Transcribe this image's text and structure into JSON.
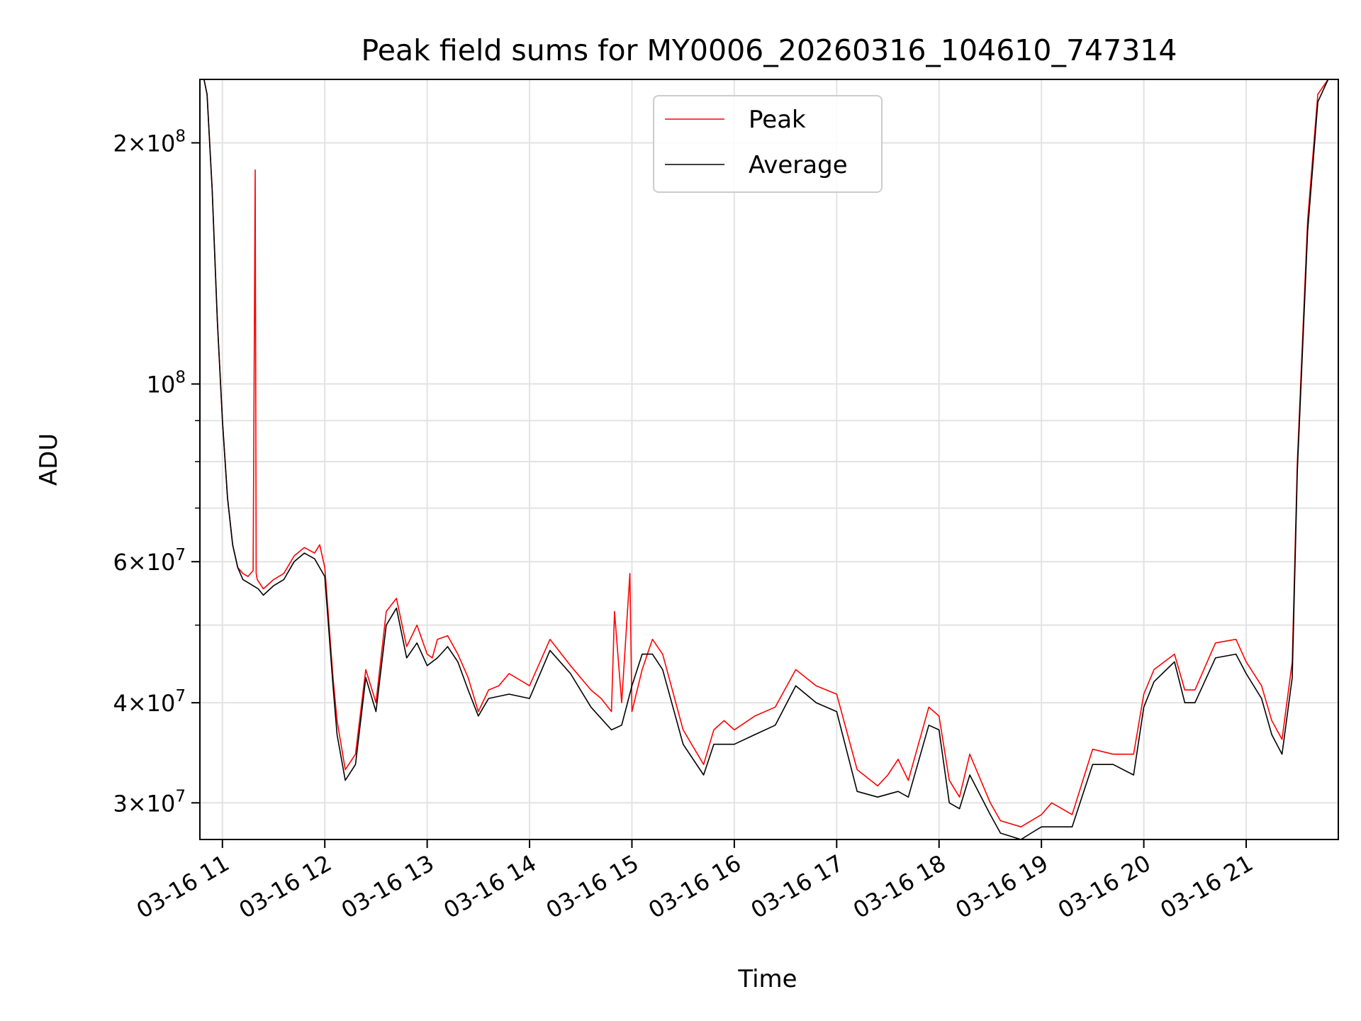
{
  "chart_data": {
    "type": "line",
    "title": "Peak field sums for MY0006_20260316_104610_747314",
    "xlabel": "Time",
    "ylabel": "ADU",
    "yscale": "log",
    "xlim": [
      "2026-03-16 10:46",
      "2026-03-16 21:54"
    ],
    "ylim": [
      27000000,
      240000000
    ],
    "grid": true,
    "legend_position": "top-center",
    "x_ticks": [
      "03-16 11",
      "03-16 12",
      "03-16 13",
      "03-16 14",
      "03-16 15",
      "03-16 16",
      "03-16 17",
      "03-16 18",
      "03-16 19",
      "03-16 20",
      "03-16 21"
    ],
    "y_ticks": [
      {
        "value": 30000000,
        "mantissa": "3",
        "exponent": "7"
      },
      {
        "value": 40000000,
        "mantissa": "4",
        "exponent": "7"
      },
      {
        "value": 60000000,
        "mantissa": "6",
        "exponent": "7"
      },
      {
        "value": 100000000,
        "mantissa": "",
        "exponent": "8"
      },
      {
        "value": 200000000,
        "mantissa": "2",
        "exponent": "8"
      }
    ],
    "tick_base": "10",
    "x_units": "hours since 2026-03-16 00:00",
    "series": [
      {
        "name": "Peak",
        "color": "#ff0000",
        "x": [
          10.82,
          10.85,
          10.9,
          10.95,
          11.0,
          11.05,
          11.1,
          11.15,
          11.2,
          11.25,
          11.3,
          11.32,
          11.33,
          11.34,
          11.4,
          11.5,
          11.6,
          11.7,
          11.8,
          11.9,
          11.95,
          12.0,
          12.08,
          12.12,
          12.2,
          12.3,
          12.4,
          12.5,
          12.6,
          12.7,
          12.8,
          12.9,
          13.0,
          13.05,
          13.1,
          13.2,
          13.3,
          13.4,
          13.5,
          13.6,
          13.7,
          13.8,
          14.0,
          14.2,
          14.4,
          14.6,
          14.7,
          14.8,
          14.83,
          14.9,
          14.98,
          15.0,
          15.1,
          15.2,
          15.3,
          15.5,
          15.7,
          15.8,
          15.9,
          16.0,
          16.2,
          16.4,
          16.6,
          16.8,
          17.0,
          17.2,
          17.4,
          17.5,
          17.6,
          17.7,
          17.9,
          18.0,
          18.1,
          18.2,
          18.3,
          18.5,
          18.6,
          18.8,
          19.0,
          19.1,
          19.2,
          19.3,
          19.5,
          19.7,
          19.9,
          20.0,
          20.1,
          20.3,
          20.4,
          20.5,
          20.7,
          20.9,
          21.0,
          21.15,
          21.25,
          21.35,
          21.45,
          21.5,
          21.6,
          21.7,
          21.8,
          21.85,
          21.9
        ],
        "y": [
          240000000,
          230000000,
          175000000,
          120000000,
          90000000,
          72000000,
          63000000,
          59000000,
          58000000,
          57500000,
          58500000,
          185000000,
          58000000,
          57000000,
          55500000,
          57000000,
          58000000,
          61000000,
          62500000,
          61500000,
          63000000,
          59000000,
          43000000,
          38000000,
          33000000,
          34500000,
          44000000,
          40000000,
          52000000,
          54000000,
          47000000,
          50000000,
          46000000,
          45500000,
          48000000,
          48500000,
          46000000,
          43000000,
          39000000,
          41500000,
          42000000,
          43500000,
          42000000,
          48000000,
          44500000,
          41500000,
          40500000,
          39000000,
          52000000,
          40000000,
          58000000,
          39000000,
          44000000,
          48000000,
          46000000,
          37000000,
          33500000,
          37000000,
          38000000,
          37000000,
          38500000,
          39500000,
          44000000,
          42000000,
          41000000,
          33000000,
          31500000,
          32500000,
          34000000,
          32000000,
          39500000,
          38500000,
          32000000,
          30500000,
          34500000,
          30000000,
          28500000,
          28000000,
          29000000,
          30000000,
          29500000,
          29000000,
          35000000,
          34500000,
          34500000,
          41000000,
          44000000,
          46000000,
          41500000,
          41500000,
          47500000,
          48000000,
          45000000,
          42000000,
          38000000,
          36000000,
          45000000,
          80000000,
          160000000,
          230000000,
          240000000,
          240000000,
          240000000
        ]
      },
      {
        "name": "Average",
        "color": "#000000",
        "x": [
          10.82,
          10.85,
          10.9,
          10.95,
          11.0,
          11.05,
          11.1,
          11.15,
          11.2,
          11.25,
          11.3,
          11.35,
          11.4,
          11.5,
          11.6,
          11.7,
          11.8,
          11.9,
          12.0,
          12.08,
          12.12,
          12.2,
          12.3,
          12.4,
          12.5,
          12.6,
          12.7,
          12.8,
          12.9,
          13.0,
          13.1,
          13.2,
          13.3,
          13.4,
          13.5,
          13.6,
          13.8,
          14.0,
          14.2,
          14.4,
          14.6,
          14.8,
          14.9,
          15.0,
          15.1,
          15.2,
          15.3,
          15.5,
          15.7,
          15.8,
          16.0,
          16.2,
          16.4,
          16.6,
          16.8,
          17.0,
          17.2,
          17.4,
          17.6,
          17.7,
          17.9,
          18.0,
          18.1,
          18.2,
          18.3,
          18.5,
          18.6,
          18.8,
          18.9,
          19.0,
          19.2,
          19.3,
          19.5,
          19.7,
          19.9,
          20.0,
          20.1,
          20.3,
          20.4,
          20.5,
          20.7,
          20.9,
          21.0,
          21.15,
          21.25,
          21.35,
          21.45,
          21.5,
          21.6,
          21.7,
          21.8,
          21.85,
          21.9
        ],
        "y": [
          240000000,
          230000000,
          175000000,
          120000000,
          90000000,
          72000000,
          63000000,
          59000000,
          57000000,
          56500000,
          56000000,
          55500000,
          54500000,
          56000000,
          57000000,
          60000000,
          61500000,
          60500000,
          57500000,
          42000000,
          36500000,
          32000000,
          33500000,
          43000000,
          39000000,
          50000000,
          52500000,
          45500000,
          47500000,
          44500000,
          45500000,
          47000000,
          45000000,
          41500000,
          38500000,
          40500000,
          41000000,
          40500000,
          46500000,
          43500000,
          39500000,
          37000000,
          37500000,
          42000000,
          46000000,
          46000000,
          44000000,
          35500000,
          32500000,
          35500000,
          35500000,
          36500000,
          37500000,
          42000000,
          40000000,
          39000000,
          31000000,
          30500000,
          31000000,
          30500000,
          37500000,
          37000000,
          30000000,
          29500000,
          32500000,
          29000000,
          27500000,
          27000000,
          27500000,
          28000000,
          28000000,
          28000000,
          33500000,
          33500000,
          32500000,
          39500000,
          42500000,
          45000000,
          40000000,
          40000000,
          45500000,
          46000000,
          43500000,
          40500000,
          36500000,
          34500000,
          43000000,
          78000000,
          155000000,
          225000000,
          240000000,
          240000000,
          240000000
        ]
      }
    ]
  }
}
